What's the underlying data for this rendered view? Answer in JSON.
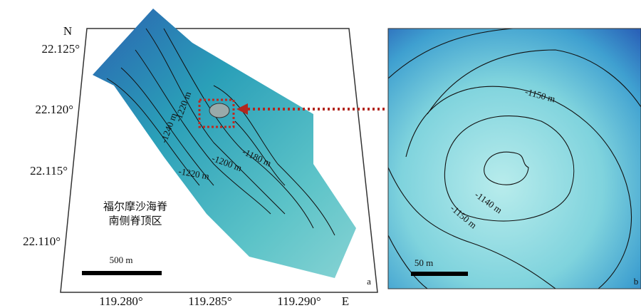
{
  "panel_a": {
    "north_label": "N",
    "east_label": "E",
    "lat_labels": [
      "22.125°",
      "22.120°",
      "22.115°",
      "22.110°"
    ],
    "lon_labels": [
      "119.280°",
      "119.285°",
      "119.290°"
    ],
    "contour_labels": [
      "-1240 m",
      "-1220 m",
      "-1200 m",
      "-1180 m",
      "-1220 m"
    ],
    "region_label": [
      "福尔摩沙海脊",
      "南侧脊顶区"
    ],
    "scale_bar": "500 m",
    "panel_letter": "a"
  },
  "panel_b": {
    "contour_labels": [
      "-1150 m",
      "-1140 m",
      "-1150 m"
    ],
    "scale_bar": "50 m",
    "panel_letter": "b"
  }
}
